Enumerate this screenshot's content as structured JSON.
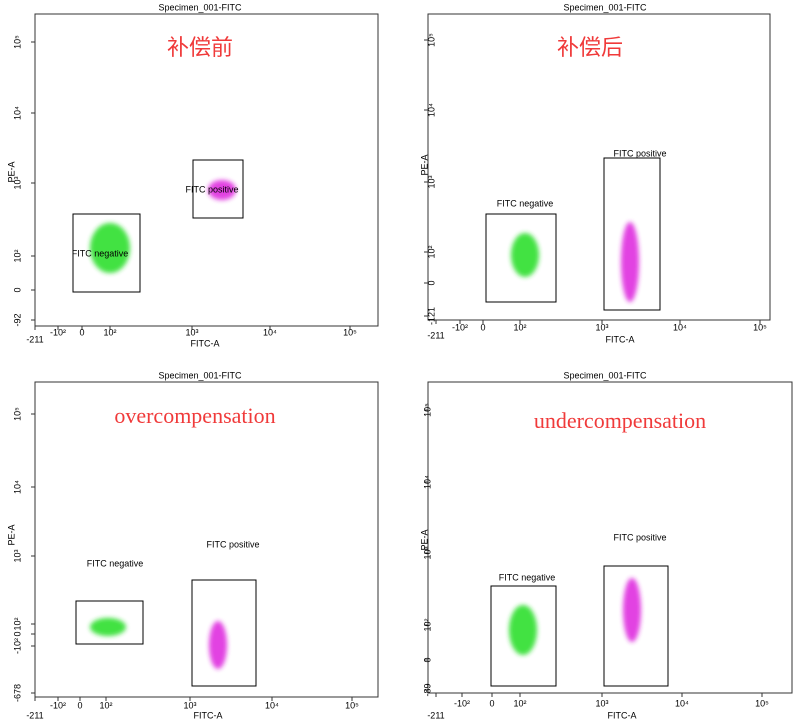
{
  "panels": [
    {
      "title": "Specimen_001-FITC",
      "annotation": "补偿前",
      "x_label": "FITC-A",
      "y_label": "PE-A",
      "xticks": [
        "-211",
        "-10²",
        "0",
        "10²",
        "10³",
        "10⁴",
        "10⁵"
      ],
      "yticks": [
        "-92",
        "0",
        "10²",
        "10³",
        "10⁴",
        "10⁵"
      ],
      "gates": [
        "FITC negative",
        "FITC positive"
      ]
    },
    {
      "title": "Specimen_001-FITC",
      "annotation": "补偿后",
      "x_label": "FITC-A",
      "y_label": "PE-A",
      "xticks": [
        "-211",
        "-10²",
        "0",
        "10²",
        "10³",
        "10⁴",
        "10⁵"
      ],
      "yticks": [
        "-121",
        "0",
        "10²",
        "10³",
        "10⁴",
        "10⁵"
      ],
      "gates": [
        "FITC negative",
        "FITC positive"
      ]
    },
    {
      "title": "Specimen_001-FITC",
      "annotation": "overcompensation",
      "x_label": "FITC-A",
      "y_label": "PE-A",
      "xticks": [
        "-211",
        "-10²",
        "0",
        "10²",
        "10³",
        "10⁴",
        "10⁵"
      ],
      "yticks": [
        "-678",
        "-10²",
        "0",
        "10²",
        "10³",
        "10⁴",
        "10⁵"
      ],
      "gates": [
        "FITC negative",
        "FITC positive"
      ]
    },
    {
      "title": "Specimen_001-FITC",
      "annotation": "undercompensation",
      "x_label": "FITC-A",
      "y_label": "PE-A",
      "xticks": [
        "-211",
        "-10²",
        "0",
        "10²",
        "10³",
        "10⁴",
        "10⁵"
      ],
      "yticks": [
        "-89",
        "0",
        "10²",
        "10³",
        "10⁴",
        "10⁵"
      ],
      "gates": [
        "FITC negative",
        "FITC positive"
      ]
    }
  ]
}
